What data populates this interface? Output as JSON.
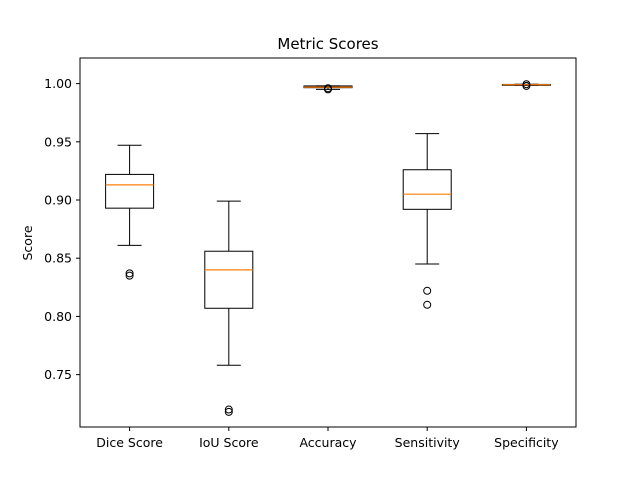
{
  "chart_data": {
    "type": "box",
    "title": "Metric Scores",
    "xlabel": "",
    "ylabel": "Score",
    "ylim": [
      0.705,
      1.022
    ],
    "yticks": [
      0.75,
      0.8,
      0.85,
      0.9,
      0.95,
      1.0
    ],
    "ytick_labels": [
      "0.75",
      "0.80",
      "0.85",
      "0.90",
      "0.95",
      "1.00"
    ],
    "grid": false,
    "median_color": "#ff7f0e",
    "box_color": "#000000",
    "categories": [
      "Dice Score",
      "IoU Score",
      "Accuracy",
      "Sensitivity",
      "Specificity"
    ],
    "boxes": [
      {
        "category": "Dice Score",
        "whisker_low": 0.861,
        "q1": 0.893,
        "median": 0.913,
        "q3": 0.922,
        "whisker_high": 0.947,
        "outliers": [
          0.835,
          0.837
        ]
      },
      {
        "category": "IoU Score",
        "whisker_low": 0.758,
        "q1": 0.807,
        "median": 0.84,
        "q3": 0.856,
        "whisker_high": 0.899,
        "outliers": [
          0.718,
          0.72
        ]
      },
      {
        "category": "Accuracy",
        "whisker_low": 0.995,
        "q1": 0.9965,
        "median": 0.997,
        "q3": 0.998,
        "whisker_high": 0.998,
        "outliers": [
          0.995,
          0.996
        ]
      },
      {
        "category": "Sensitivity",
        "whisker_low": 0.845,
        "q1": 0.892,
        "median": 0.905,
        "q3": 0.926,
        "whisker_high": 0.957,
        "outliers": [
          0.81,
          0.822
        ]
      },
      {
        "category": "Specificity",
        "whisker_low": 0.9985,
        "q1": 0.9985,
        "median": 0.999,
        "q3": 0.9993,
        "whisker_high": 0.9995,
        "outliers": [
          0.998,
          0.9995
        ]
      }
    ]
  }
}
